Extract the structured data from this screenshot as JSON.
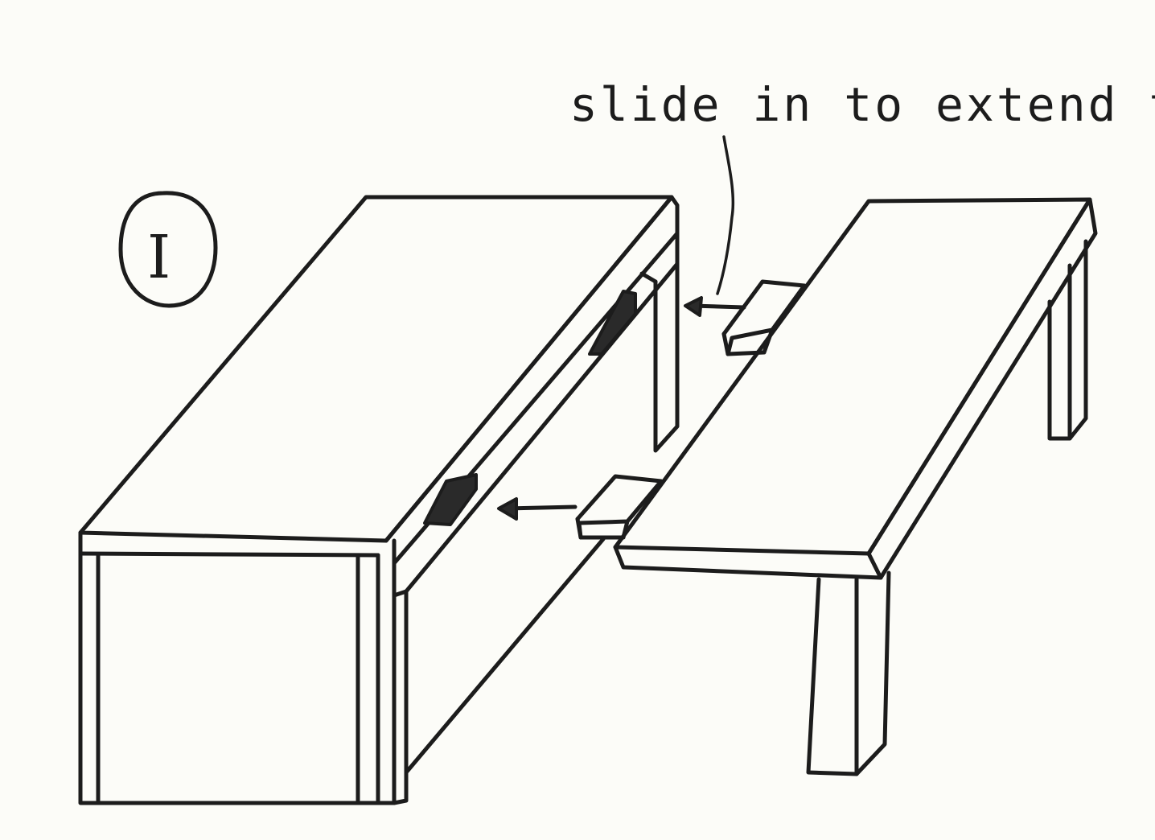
{
  "diagram": {
    "step_label": "I",
    "caption": "slide in to extend table",
    "colors": {
      "ink": "#1c1c1c",
      "paper": "#fcfcf8"
    }
  }
}
